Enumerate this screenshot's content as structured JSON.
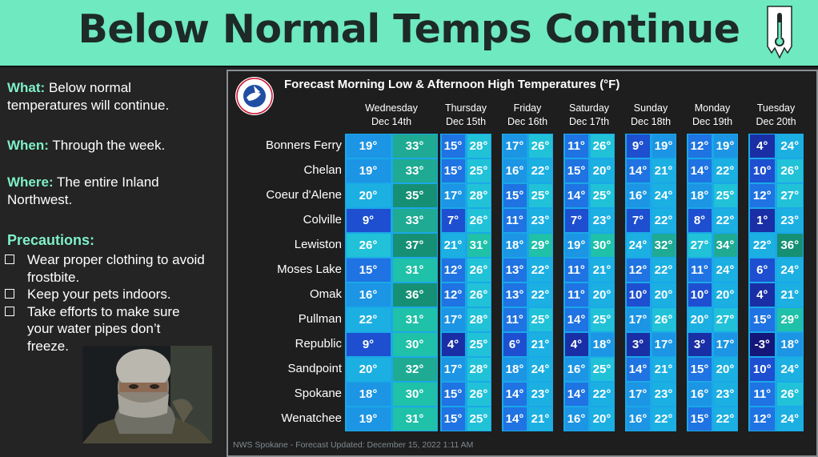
{
  "header": {
    "title": "Below Normal Temps Continue"
  },
  "info": {
    "what_label": "What:",
    "what_text": "Below normal temperatures will continue.",
    "when_label": "When:",
    "when_text": "Through the week.",
    "where_label": "Where:",
    "where_text": "The entire Inland Northwest.",
    "precautions_label": "Precautions:",
    "precautions": [
      "Wear proper clothing to avoid frostbite.",
      "Keep your pets indoors.",
      "Take efforts to make sure your water pipes don’t freeze."
    ]
  },
  "forecast": {
    "title": "Forecast Morning Low & Afternoon High Temperatures (°F)",
    "logo_text": "NATIONAL WEATHER SERVICE",
    "footer": "NWS Spokane - Forecast Updated: December 15, 2022 1:11 AM",
    "days": [
      {
        "name": "Wednesday",
        "date": "Dec 14th"
      },
      {
        "name": "Thursday",
        "date": "Dec 15th"
      },
      {
        "name": "Friday",
        "date": "Dec 16th"
      },
      {
        "name": "Saturday",
        "date": "Dec 17th"
      },
      {
        "name": "Sunday",
        "date": "Dec 18th"
      },
      {
        "name": "Monday",
        "date": "Dec 19th"
      },
      {
        "name": "Tuesday",
        "date": "Dec 20th"
      }
    ],
    "cities": [
      "Bonners Ferry",
      "Chelan",
      "Coeur d'Alene",
      "Colville",
      "Lewiston",
      "Moses Lake",
      "Omak",
      "Pullman",
      "Republic",
      "Sandpoint",
      "Spokane",
      "Wenatchee"
    ],
    "rows": [
      [
        [
          19,
          33
        ],
        [
          15,
          28
        ],
        [
          17,
          26
        ],
        [
          11,
          26
        ],
        [
          9,
          19
        ],
        [
          12,
          19
        ],
        [
          4,
          24
        ]
      ],
      [
        [
          19,
          33
        ],
        [
          15,
          25
        ],
        [
          16,
          22
        ],
        [
          15,
          20
        ],
        [
          14,
          21
        ],
        [
          14,
          22
        ],
        [
          10,
          26
        ]
      ],
      [
        [
          20,
          35
        ],
        [
          17,
          28
        ],
        [
          15,
          25
        ],
        [
          14,
          25
        ],
        [
          16,
          24
        ],
        [
          18,
          25
        ],
        [
          12,
          27
        ]
      ],
      [
        [
          9,
          33
        ],
        [
          7,
          26
        ],
        [
          11,
          23
        ],
        [
          7,
          23
        ],
        [
          7,
          22
        ],
        [
          8,
          22
        ],
        [
          1,
          23
        ]
      ],
      [
        [
          26,
          37
        ],
        [
          21,
          31
        ],
        [
          18,
          29
        ],
        [
          19,
          30
        ],
        [
          24,
          32
        ],
        [
          27,
          34
        ],
        [
          22,
          36
        ]
      ],
      [
        [
          15,
          31
        ],
        [
          12,
          26
        ],
        [
          13,
          22
        ],
        [
          11,
          21
        ],
        [
          12,
          22
        ],
        [
          11,
          24
        ],
        [
          6,
          24
        ]
      ],
      [
        [
          16,
          36
        ],
        [
          12,
          26
        ],
        [
          13,
          22
        ],
        [
          11,
          20
        ],
        [
          10,
          20
        ],
        [
          10,
          20
        ],
        [
          4,
          21
        ]
      ],
      [
        [
          22,
          31
        ],
        [
          17,
          28
        ],
        [
          11,
          25
        ],
        [
          14,
          25
        ],
        [
          17,
          26
        ],
        [
          20,
          27
        ],
        [
          15,
          29
        ]
      ],
      [
        [
          9,
          30
        ],
        [
          4,
          25
        ],
        [
          6,
          21
        ],
        [
          4,
          18
        ],
        [
          3,
          17
        ],
        [
          3,
          17
        ],
        [
          -3,
          18
        ]
      ],
      [
        [
          20,
          32
        ],
        [
          17,
          28
        ],
        [
          18,
          24
        ],
        [
          16,
          25
        ],
        [
          14,
          21
        ],
        [
          15,
          20
        ],
        [
          10,
          24
        ]
      ],
      [
        [
          18,
          30
        ],
        [
          15,
          26
        ],
        [
          14,
          23
        ],
        [
          14,
          22
        ],
        [
          17,
          23
        ],
        [
          16,
          23
        ],
        [
          11,
          26
        ]
      ],
      [
        [
          19,
          31
        ],
        [
          15,
          25
        ],
        [
          14,
          21
        ],
        [
          16,
          20
        ],
        [
          16,
          22
        ],
        [
          15,
          22
        ],
        [
          12,
          24
        ]
      ]
    ],
    "colors": {
      "col_bg": "#1aa8e8",
      "header_bg": "#6ee9c0",
      "accent": "#7ef0c6"
    }
  }
}
